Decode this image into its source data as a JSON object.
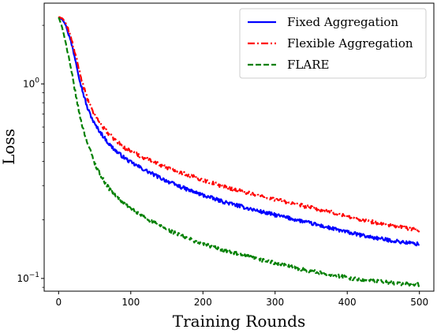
{
  "chart_data": {
    "type": "line",
    "xlabel": "Training Rounds",
    "ylabel": "Loss",
    "x_ticks": [
      "0",
      "100",
      "200",
      "300",
      "400",
      "500"
    ],
    "y_ticks": [
      {
        "base": "10",
        "exp": "0",
        "value": 1.0
      },
      {
        "base": "10",
        "exp": "−1",
        "value": 0.1
      }
    ],
    "xlim": [
      -20,
      520
    ],
    "ylim": [
      0.086,
      2.6
    ],
    "yscale": "log",
    "grid": false,
    "legend_position": "top-right",
    "series": [
      {
        "name": "Fixed Aggregation",
        "color": "#0000ff",
        "linestyle": "solid",
        "x": [
          0,
          5,
          10,
          15,
          20,
          25,
          30,
          35,
          40,
          50,
          60,
          70,
          80,
          90,
          100,
          120,
          140,
          160,
          180,
          200,
          225,
          250,
          275,
          300,
          325,
          350,
          375,
          400,
          425,
          450,
          475,
          500
        ],
        "y": [
          2.2,
          2.15,
          2.0,
          1.75,
          1.5,
          1.25,
          1.02,
          0.87,
          0.75,
          0.62,
          0.55,
          0.49,
          0.45,
          0.42,
          0.395,
          0.36,
          0.33,
          0.305,
          0.285,
          0.268,
          0.25,
          0.236,
          0.223,
          0.212,
          0.202,
          0.192,
          0.182,
          0.173,
          0.165,
          0.159,
          0.154,
          0.15
        ]
      },
      {
        "name": "Flexible Aggregation",
        "color": "#ff0000",
        "linestyle": "dashdot",
        "x": [
          0,
          5,
          10,
          15,
          20,
          25,
          30,
          35,
          40,
          50,
          60,
          70,
          80,
          90,
          100,
          120,
          140,
          160,
          180,
          200,
          225,
          250,
          275,
          300,
          325,
          350,
          375,
          400,
          425,
          450,
          475,
          500
        ],
        "y": [
          2.2,
          2.18,
          2.05,
          1.83,
          1.58,
          1.33,
          1.12,
          0.96,
          0.83,
          0.69,
          0.61,
          0.55,
          0.51,
          0.475,
          0.45,
          0.415,
          0.385,
          0.36,
          0.34,
          0.32,
          0.3,
          0.283,
          0.268,
          0.255,
          0.243,
          0.231,
          0.22,
          0.209,
          0.199,
          0.19,
          0.183,
          0.177
        ]
      },
      {
        "name": "FLARE",
        "color": "#008000",
        "linestyle": "dashed",
        "x": [
          0,
          5,
          10,
          15,
          20,
          25,
          30,
          35,
          40,
          50,
          60,
          70,
          80,
          90,
          100,
          120,
          140,
          160,
          180,
          200,
          225,
          250,
          275,
          300,
          325,
          350,
          375,
          400,
          425,
          450,
          475,
          500
        ],
        "y": [
          2.2,
          1.95,
          1.62,
          1.3,
          1.05,
          0.83,
          0.67,
          0.57,
          0.5,
          0.39,
          0.33,
          0.29,
          0.265,
          0.245,
          0.228,
          0.205,
          0.187,
          0.172,
          0.16,
          0.151,
          0.141,
          0.133,
          0.126,
          0.12,
          0.114,
          0.109,
          0.105,
          0.101,
          0.098,
          0.096,
          0.094,
          0.093
        ]
      }
    ]
  }
}
